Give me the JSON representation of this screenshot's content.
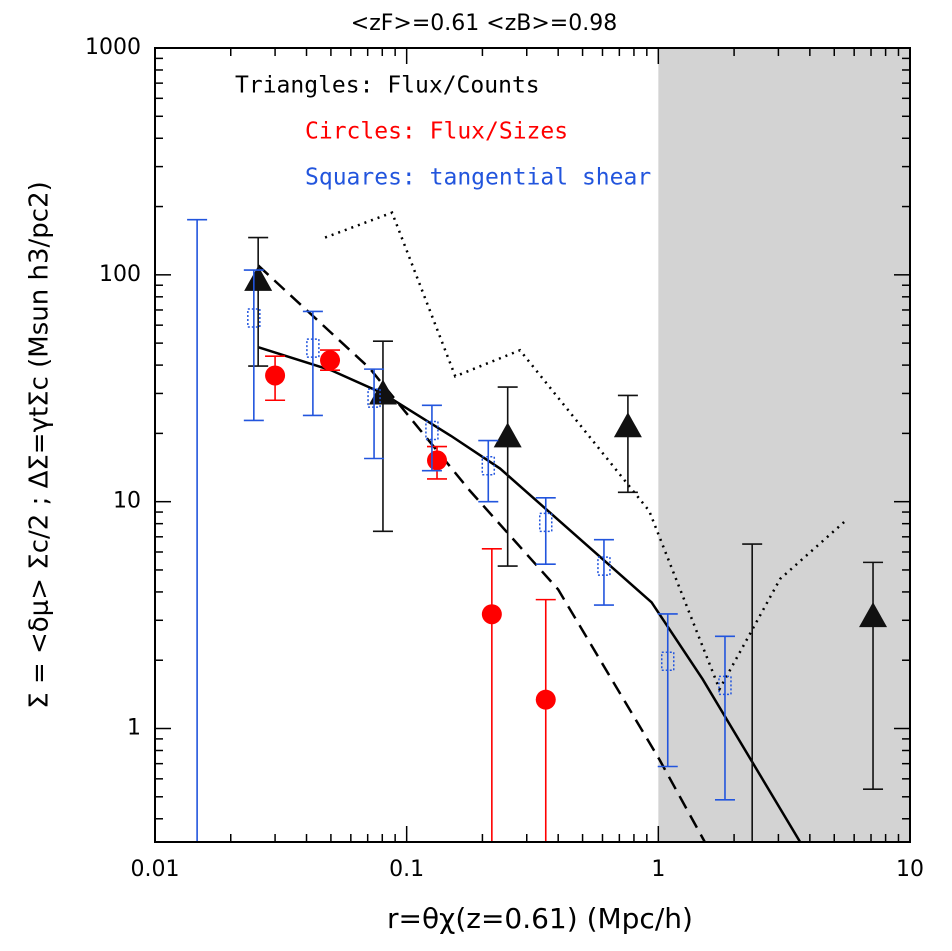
{
  "chart_data": {
    "type": "scatter",
    "title": "<zF>=0.61  <zB>=0.98",
    "xlabel": "r=θχ(z=0.61)   (Mpc/h)",
    "ylabel": "Σ = <δμ> Σc/2   ;   ΔΣ=γtΣc   (Msun h3/pc2)",
    "xscale": "log",
    "yscale": "log",
    "xlim": [
      0.01,
      10
    ],
    "ylim": [
      0.316,
      1000
    ],
    "xticks": [
      0.01,
      0.1,
      1,
      10
    ],
    "yticks": [
      1,
      10,
      100,
      1000
    ],
    "shaded_region": [
      1,
      10
    ],
    "shaded_color": "#d3d3d3",
    "legend": [
      "Triangles: Flux/Counts",
      "Circles: Flux/Sizes",
      "Squares: tangential shear"
    ],
    "legend_colors": [
      "#000000",
      "#ff0000",
      "#2255dd"
    ],
    "series": [
      {
        "name": "Triangles",
        "marker": "triangle",
        "color": "#111111",
        "x": [
          0.0257,
          0.0805,
          0.252,
          0.757,
          2.36,
          7.13
        ],
        "values": [
          95,
          30,
          19.4,
          21.5,
          null,
          3.13
        ],
        "err_high": [
          146,
          51,
          32,
          29.4,
          6.5,
          5.4
        ],
        "err_low": [
          39.6,
          7.4,
          5.2,
          11,
          0.3,
          0.54
        ]
      },
      {
        "name": "Circles",
        "marker": "circle",
        "color": "#ff0000",
        "x": [
          0.03,
          0.0496,
          0.132,
          0.218,
          0.357
        ],
        "values": [
          36,
          42,
          15.2,
          3.19,
          1.34
        ],
        "err_high": [
          43.8,
          46.6,
          17.5,
          6.2,
          3.7
        ],
        "err_low": [
          28,
          38,
          12.6,
          0.3,
          0.3
        ]
      },
      {
        "name": "Squares",
        "marker": "square",
        "color": "#2255dd",
        "x": [
          0.0147,
          0.0247,
          0.0424,
          0.0742,
          0.126,
          0.211,
          0.357,
          0.608,
          1.09,
          1.84
        ],
        "values": [
          null,
          64.5,
          47.5,
          28.6,
          20.6,
          14.4,
          8.1,
          5.2,
          1.98,
          1.55
        ],
        "err_high": [
          175,
          105,
          69,
          38.4,
          26.6,
          18.6,
          10.4,
          6.8,
          3.2,
          2.55
        ],
        "err_low": [
          0.3,
          22.8,
          24,
          15.5,
          13.7,
          10,
          5.3,
          3.5,
          0.68,
          0.485
        ]
      }
    ],
    "lines": [
      {
        "name": "solid",
        "dash": "solid",
        "color": "#000000",
        "x": [
          0.0257,
          0.05,
          0.0805,
          0.15,
          0.235,
          0.94,
          1.5,
          3.66
        ],
        "values": [
          48,
          38,
          30,
          19.5,
          14,
          3.6,
          1.65,
          0.316
        ]
      },
      {
        "name": "dashed",
        "dash": "dashed",
        "color": "#000000",
        "x": [
          0.0257,
          0.0713,
          0.178,
          0.4,
          1.01,
          1.53
        ],
        "values": [
          110,
          38.7,
          11.2,
          4.1,
          0.73,
          0.316
        ]
      },
      {
        "name": "dotted",
        "dash": "dotted",
        "color": "#000000",
        "x": [
          0.0474,
          0.0875,
          0.156,
          0.282,
          0.92,
          1.75,
          3.05,
          5.52
        ],
        "values": [
          146,
          188,
          35.7,
          46.5,
          9.1,
          1.49,
          4.57,
          8.2
        ]
      }
    ]
  }
}
